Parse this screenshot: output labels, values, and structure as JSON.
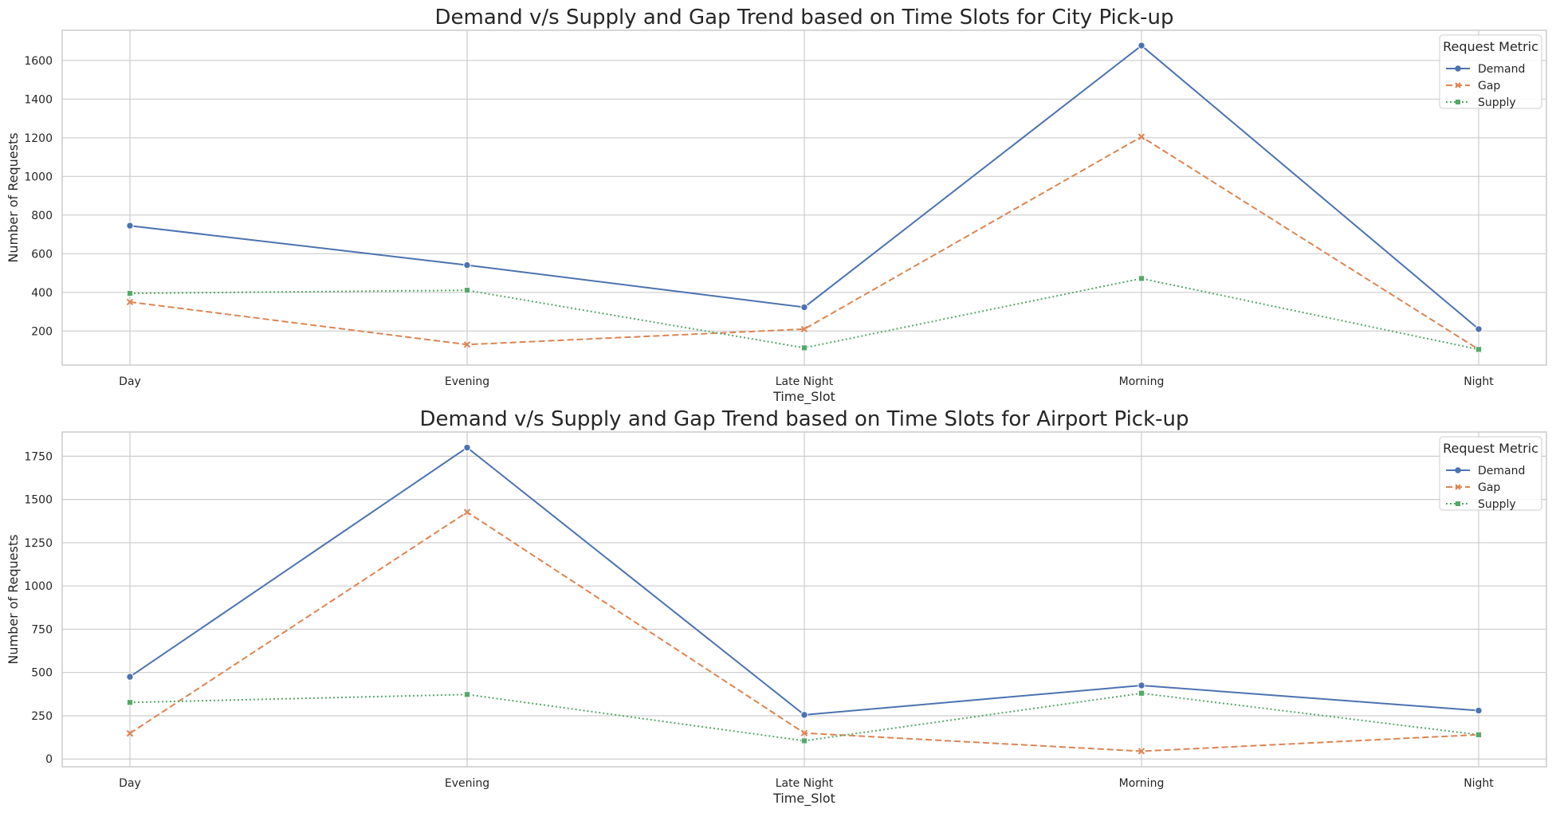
{
  "chart_data": [
    {
      "type": "line",
      "title": "Demand v/s Supply and Gap Trend based on Time Slots for City Pick-up",
      "xlabel": "Time_Slot",
      "ylabel": "Number of Requests",
      "categories": [
        "Day",
        "Evening",
        "Late Night",
        "Morning",
        "Night"
      ],
      "ylim": [
        24,
        1756
      ],
      "yticks": [
        200,
        400,
        600,
        800,
        1000,
        1200,
        1400,
        1600
      ],
      "grid": true,
      "legend": {
        "title": "Request Metric",
        "placement": "top-right"
      },
      "series": [
        {
          "name": "Demand",
          "values": [
            745,
            541,
            323,
            1677,
            210
          ]
        },
        {
          "name": "Gap",
          "values": [
            350,
            130,
            210,
            1205,
            105
          ]
        },
        {
          "name": "Supply",
          "values": [
            395,
            411,
            113,
            472,
            105
          ]
        }
      ]
    },
    {
      "type": "line",
      "title": "Demand v/s Supply and Gap Trend based on Time Slots for Airport Pick-up",
      "xlabel": "Time_Slot",
      "ylabel": "Number of Requests",
      "categories": [
        "Day",
        "Evening",
        "Late Night",
        "Morning",
        "Night"
      ],
      "ylim": [
        -45,
        1890
      ],
      "yticks": [
        0,
        250,
        500,
        750,
        1000,
        1250,
        1500,
        1750
      ],
      "grid": true,
      "legend": {
        "title": "Request Metric",
        "placement": "top-right"
      },
      "series": [
        {
          "name": "Demand",
          "values": [
            475,
            1800,
            255,
            425,
            280
          ]
        },
        {
          "name": "Gap",
          "values": [
            148,
            1427,
            150,
            45,
            140
          ]
        },
        {
          "name": "Supply",
          "values": [
            327,
            373,
            105,
            380,
            140
          ]
        }
      ]
    }
  ],
  "style": {
    "colors": {
      "Demand": "#4c72b0",
      "Gap": "#dd8452",
      "Supply": "#55a868"
    },
    "markers": {
      "Demand": "circle",
      "Gap": "x",
      "Supply": "square"
    },
    "dashes": {
      "Demand": "solid",
      "Gap": "dashed",
      "Supply": "dotted"
    }
  }
}
